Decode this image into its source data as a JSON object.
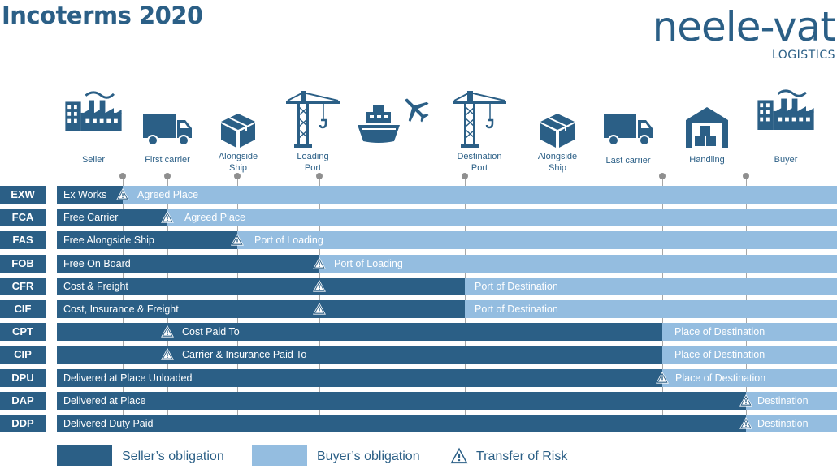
{
  "title": "Incoterms 2020",
  "logo": {
    "name": "neele-vat",
    "sub": "LOGISTICS"
  },
  "colors": {
    "seller": "#2b5f86",
    "buyer": "#94bde0",
    "accent": "#2b5f86",
    "stem": "#a7a7a7"
  },
  "stages": [
    {
      "label": "Seller",
      "icon": "factory-icon"
    },
    {
      "label": "First carrier",
      "icon": "truck-icon"
    },
    {
      "label": "Alongside\nShip",
      "icon": "box-icon"
    },
    {
      "label": "Loading\nPort",
      "icon": "crane-icon"
    },
    {
      "label": "",
      "icon": "ship-icon"
    },
    {
      "label": "",
      "icon": "airplane-icon"
    },
    {
      "label": "Destination\nPort",
      "icon": "crane-icon"
    },
    {
      "label": "Alongside\nShip",
      "icon": "box-icon"
    },
    {
      "label": "Last carrier",
      "icon": "truck-icon"
    },
    {
      "label": "Handling",
      "icon": "warehouse-icon"
    },
    {
      "label": "Buyer",
      "icon": "factory-icon"
    }
  ],
  "terms": [
    {
      "code": "EXW",
      "seller_text": "Ex Works",
      "buyer_text": "Agreed Place",
      "risk_point": "Seller"
    },
    {
      "code": "FCA",
      "seller_text": "Free Carrier",
      "buyer_text": "Agreed Place",
      "risk_point": "First carrier"
    },
    {
      "code": "FAS",
      "seller_text": "Free Alongside Ship",
      "buyer_text": "Port of Loading",
      "risk_point": "Alongside Ship"
    },
    {
      "code": "FOB",
      "seller_text": "Free On Board",
      "buyer_text": "Port of Loading",
      "risk_point": "Loading Port"
    },
    {
      "code": "CFR",
      "seller_text": "Cost & Freight",
      "buyer_text": "Port of Destination",
      "risk_point": "Loading Port"
    },
    {
      "code": "CIF",
      "seller_text": "Cost, Insurance & Freight",
      "buyer_text": "Port of Destination",
      "risk_point": "Loading Port"
    },
    {
      "code": "CPT",
      "seller_text": "Cost Paid To",
      "buyer_text": "Place of Destination",
      "risk_point": "First carrier"
    },
    {
      "code": "CIP",
      "seller_text": "Carrier & Insurance Paid To",
      "buyer_text": "Place of Destination",
      "risk_point": "First carrier"
    },
    {
      "code": "DPU",
      "seller_text": "Delivered at Place Unloaded",
      "buyer_text": "Place of Destination",
      "risk_point": "Last carrier"
    },
    {
      "code": "DAP",
      "seller_text": "Delivered at Place",
      "buyer_text": "Destination",
      "risk_point": "Handling"
    },
    {
      "code": "DDP",
      "seller_text": "Delivered Duty Paid",
      "buyer_text": "Destination",
      "risk_point": "Handling"
    }
  ],
  "legend": {
    "seller": "Seller’s obligation",
    "buyer": "Buyer’s obligation",
    "risk": "Transfer of Risk"
  }
}
